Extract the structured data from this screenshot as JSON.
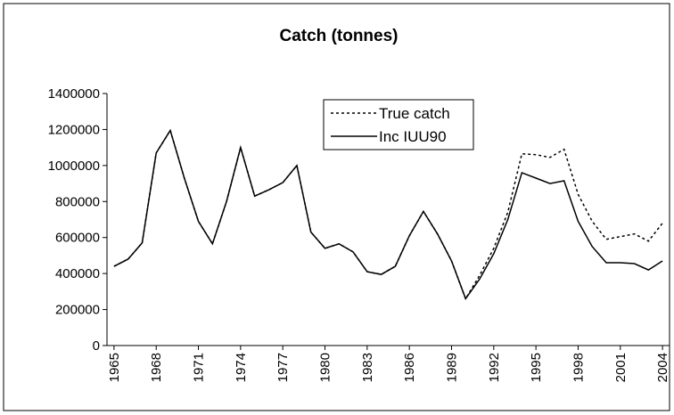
{
  "chart_data": {
    "type": "line",
    "title": "Catch (tonnes)",
    "x": [
      1965,
      1966,
      1967,
      1968,
      1969,
      1970,
      1971,
      1972,
      1973,
      1974,
      1975,
      1976,
      1977,
      1978,
      1979,
      1980,
      1981,
      1982,
      1983,
      1984,
      1985,
      1986,
      1987,
      1988,
      1989,
      1990,
      1991,
      1992,
      1993,
      1994,
      1995,
      1996,
      1997,
      1998,
      1999,
      2000,
      2001,
      2002,
      2003,
      2004
    ],
    "series": [
      {
        "name": "True catch",
        "color": "#000000",
        "style": "dotted",
        "values": [
          440000,
          480000,
          570000,
          1070000,
          1195000,
          930000,
          690000,
          565000,
          800000,
          1100000,
          830000,
          865000,
          905000,
          1000000,
          630000,
          540000,
          565000,
          520000,
          410000,
          395000,
          440000,
          610000,
          745000,
          620000,
          470000,
          260000,
          390000,
          540000,
          740000,
          1065000,
          1060000,
          1045000,
          1090000,
          840000,
          690000,
          590000,
          605000,
          620000,
          580000,
          680000
        ]
      },
      {
        "name": "Inc IUU90",
        "color": "#000000",
        "style": "solid",
        "values": [
          440000,
          480000,
          570000,
          1070000,
          1195000,
          930000,
          690000,
          565000,
          800000,
          1100000,
          830000,
          865000,
          905000,
          1000000,
          630000,
          540000,
          565000,
          520000,
          410000,
          395000,
          440000,
          610000,
          745000,
          620000,
          470000,
          260000,
          370000,
          510000,
          700000,
          960000,
          930000,
          900000,
          915000,
          690000,
          550000,
          460000,
          460000,
          455000,
          420000,
          470000
        ]
      }
    ],
    "xlim": [
      1964.5,
      2004.5
    ],
    "xticks": [
      1965,
      1968,
      1971,
      1974,
      1977,
      1980,
      1983,
      1986,
      1989,
      1992,
      1995,
      1998,
      2001,
      2004
    ],
    "ylim": [
      0,
      1400000
    ],
    "yticks": [
      0,
      200000,
      400000,
      600000,
      800000,
      1000000,
      1200000,
      1400000
    ],
    "legend": "top-center"
  }
}
